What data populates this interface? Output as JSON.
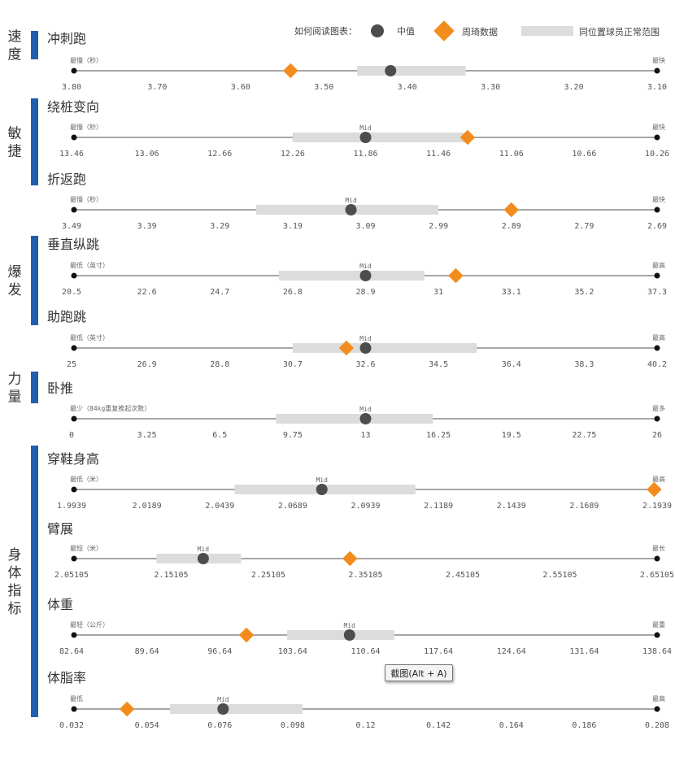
{
  "legend": {
    "title": "如何阅读图表：",
    "median_label": "中值",
    "week_label": "周琦数据",
    "range_label": "同位置球员正常范围"
  },
  "colors": {
    "category_bar": "#1f5fad",
    "median": "#4d4d4d",
    "player": "#f28c1c",
    "range": "#dcdcdc",
    "axis": "#888888"
  },
  "tooltip": "截图(Alt + A)",
  "chart_data": {
    "type": "range-bullet",
    "categories": [
      {
        "label": "速度",
        "metrics": [
          0
        ]
      },
      {
        "label": "敏捷",
        "metrics": [
          1,
          2
        ]
      },
      {
        "label": "爆发",
        "metrics": [
          3,
          4
        ]
      },
      {
        "label": "力量",
        "metrics": [
          5
        ]
      },
      {
        "label": "身体指标",
        "metrics": [
          6,
          7,
          8,
          9
        ]
      }
    ],
    "metrics": [
      {
        "title": "冲刺跑",
        "min_label": "最慢（秒）",
        "max_label": "最快",
        "mid_label": "",
        "reverse": true,
        "ticks": [
          "3.80",
          "3.70",
          "3.60",
          "3.50",
          "3.40",
          "3.30",
          "3.20",
          "3.10"
        ],
        "axis": [
          3.8,
          3.1
        ],
        "range": [
          3.46,
          3.33
        ],
        "median": 3.42,
        "player": 3.54
      },
      {
        "title": "绕桩变向",
        "min_label": "最慢（秒）",
        "max_label": "最快",
        "mid_label": "Mid",
        "reverse": true,
        "ticks": [
          "13.46",
          "13.06",
          "12.66",
          "12.26",
          "11.86",
          "11.46",
          "11.06",
          "10.66",
          "10.26"
        ],
        "axis": [
          13.46,
          10.26
        ],
        "range": [
          12.26,
          11.3
        ],
        "median": 11.86,
        "player": 11.3
      },
      {
        "title": "折返跑",
        "min_label": "最慢（秒）",
        "max_label": "最快",
        "mid_label": "Mid",
        "reverse": true,
        "ticks": [
          "3.49",
          "3.39",
          "3.29",
          "3.19",
          "3.09",
          "2.99",
          "2.89",
          "2.79",
          "2.69"
        ],
        "axis": [
          3.49,
          2.69
        ],
        "range": [
          3.24,
          2.99
        ],
        "median": 3.11,
        "player": 2.89
      },
      {
        "title": "垂直纵跳",
        "min_label": "最低（英寸）",
        "max_label": "最高",
        "mid_label": "Mid",
        "reverse": false,
        "ticks": [
          "20.5",
          "22.6",
          "24.7",
          "26.8",
          "28.9",
          "31",
          "33.1",
          "35.2",
          "37.3"
        ],
        "axis": [
          20.5,
          37.3
        ],
        "range": [
          26.4,
          30.6
        ],
        "median": 28.9,
        "player": 31.5
      },
      {
        "title": "助跑跳",
        "min_label": "最低（英寸）",
        "max_label": "最高",
        "mid_label": "Mid",
        "reverse": false,
        "ticks": [
          "25",
          "26.9",
          "28.8",
          "30.7",
          "32.6",
          "34.5",
          "36.4",
          "38.3",
          "40.2"
        ],
        "axis": [
          25,
          40.2
        ],
        "range": [
          30.7,
          35.5
        ],
        "median": 32.6,
        "player": 32.1
      },
      {
        "title": "卧推",
        "min_label": "最少（84kg重复推起次数）",
        "max_label": "最多",
        "mid_label": "Mid",
        "reverse": false,
        "ticks": [
          "0",
          "3.25",
          "6.5",
          "9.75",
          "13",
          "16.25",
          "19.5",
          "22.75",
          "26"
        ],
        "axis": [
          0,
          26
        ],
        "range": [
          9,
          16
        ],
        "median": 13,
        "player": null
      },
      {
        "title": "穿鞋身高",
        "min_label": "最低（米）",
        "max_label": "最高",
        "mid_label": "Mid",
        "reverse": false,
        "ticks": [
          "1.9939",
          "2.0189",
          "2.0439",
          "2.0689",
          "2.0939",
          "2.1189",
          "2.1439",
          "2.1689",
          "2.1939"
        ],
        "axis": [
          1.9939,
          2.1939
        ],
        "range": [
          2.049,
          2.111
        ],
        "median": 2.0789,
        "player": 2.1929
      },
      {
        "title": "臂展",
        "min_label": "最短（米）",
        "max_label": "最长",
        "mid_label": "Mid",
        "reverse": false,
        "ticks": [
          "2.05105",
          "2.15105",
          "2.25105",
          "2.35105",
          "2.45105",
          "2.55105",
          "2.65105"
        ],
        "axis": [
          2.05105,
          2.65105
        ],
        "range": [
          2.136,
          2.223
        ],
        "median": 2.184,
        "player": 2.335
      },
      {
        "title": "体重",
        "min_label": "最轻（公斤）",
        "max_label": "最重",
        "mid_label": "Mid",
        "reverse": false,
        "ticks": [
          "82.64",
          "89.64",
          "96.64",
          "103.64",
          "110.64",
          "117.64",
          "124.64",
          "131.64",
          "138.64"
        ],
        "axis": [
          82.64,
          138.64
        ],
        "range": [
          103.1,
          113.4
        ],
        "median": 109.1,
        "player": 99.2
      },
      {
        "title": "体脂率",
        "min_label": "最低",
        "max_label": "最高",
        "mid_label": "Mid",
        "reverse": false,
        "ticks": [
          "0.032",
          "0.054",
          "0.076",
          "0.098",
          "0.12",
          "0.142",
          "0.164",
          "0.186",
          "0.208"
        ],
        "axis": [
          0.032,
          0.208
        ],
        "range": [
          0.061,
          0.101
        ],
        "median": 0.077,
        "player": 0.048
      }
    ]
  }
}
